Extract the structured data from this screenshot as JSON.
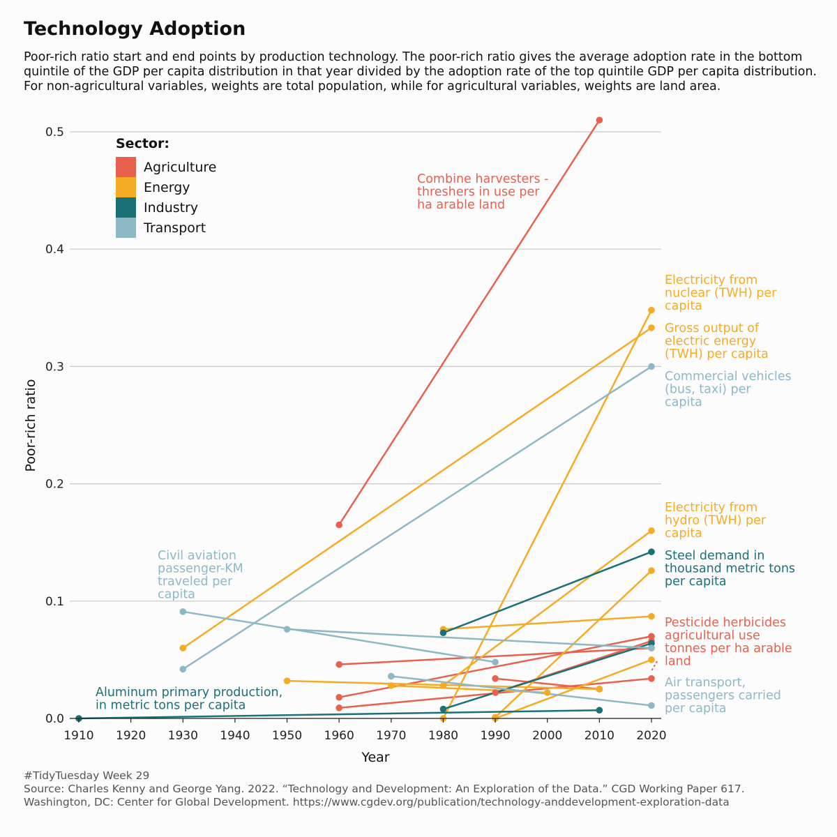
{
  "title": "Technology Adoption",
  "subtitle": "Poor-rich ratio start and end points by production technology. The poor-rich ratio gives the average adoption rate in the bottom quintile of the GDP per capita distribution in that year divided by the adoption rate of the top quintile GDP per capita distribution. For non-agricultural variables, weights are total population, while for agricultural variables, weights are land area.",
  "caption": {
    "line1": "#TidyTuesday Week 29",
    "line2": "Source: Charles Kenny and George Yang. 2022. “Technology and Development: An Exploration of the Data.” CGD Working Paper 617.",
    "line3": "Washington, DC: Center for Global Development. https://www.cgdev.org/publication/technology-anddevelopment-exploration-data"
  },
  "colors": {
    "Agriculture": "#e8614f",
    "Energy": "#f5ac24",
    "Industry": "#1a7178",
    "Transport": "#8db9c6"
  },
  "chart_data": {
    "type": "line",
    "title": "Technology Adoption",
    "xlabel": "Year",
    "ylabel": "Poor-rich ratio",
    "xlim": [
      1910,
      2020
    ],
    "ylim": [
      0,
      0.5
    ],
    "x_ticks": [
      1910,
      1920,
      1930,
      1940,
      1950,
      1960,
      1970,
      1980,
      1990,
      2000,
      2010,
      2020
    ],
    "y_ticks": [
      0.0,
      0.1,
      0.2,
      0.3,
      0.4,
      0.5
    ],
    "y_tick_labels": [
      "0.0",
      "0.1",
      "0.2",
      "0.3",
      "0.4",
      "0.5"
    ],
    "grid": true,
    "legend": {
      "title": "Sector:",
      "position": "top-left",
      "entries": [
        "Agriculture",
        "Energy",
        "Industry",
        "Transport"
      ]
    },
    "series": [
      {
        "sector": "Agriculture",
        "x": [
          1960,
          2010
        ],
        "y": [
          0.165,
          0.51
        ]
      },
      {
        "sector": "Agriculture",
        "x": [
          1960,
          2020
        ],
        "y": [
          0.046,
          0.06
        ]
      },
      {
        "sector": "Agriculture",
        "x": [
          1960,
          2020
        ],
        "y": [
          0.018,
          0.07
        ]
      },
      {
        "sector": "Agriculture",
        "x": [
          1960,
          2020
        ],
        "y": [
          0.009,
          0.034
        ]
      },
      {
        "sector": "Agriculture",
        "x": [
          1990,
          2020
        ],
        "y": [
          0.022,
          0.066
        ]
      },
      {
        "sector": "Agriculture",
        "x": [
          1990,
          2010
        ],
        "y": [
          0.034,
          0.025
        ]
      },
      {
        "sector": "Energy",
        "x": [
          1930,
          2020
        ],
        "y": [
          0.06,
          0.333
        ]
      },
      {
        "sector": "Energy",
        "x": [
          1980,
          2020
        ],
        "y": [
          0.0,
          0.348
        ]
      },
      {
        "sector": "Energy",
        "x": [
          1950,
          2010
        ],
        "y": [
          0.032,
          0.025
        ]
      },
      {
        "sector": "Energy",
        "x": [
          1970,
          2000
        ],
        "y": [
          0.028,
          0.022
        ]
      },
      {
        "sector": "Energy",
        "x": [
          1980,
          2020
        ],
        "y": [
          0.076,
          0.087
        ]
      },
      {
        "sector": "Energy",
        "x": [
          1980,
          2020
        ],
        "y": [
          0.028,
          0.16
        ]
      },
      {
        "sector": "Energy",
        "x": [
          1990,
          2020
        ],
        "y": [
          0.001,
          0.126
        ]
      },
      {
        "sector": "Energy",
        "x": [
          1990,
          2020
        ],
        "y": [
          0.0,
          0.05
        ]
      },
      {
        "sector": "Industry",
        "x": [
          1980,
          2020
        ],
        "y": [
          0.073,
          0.142
        ]
      },
      {
        "sector": "Industry",
        "x": [
          1980,
          2020
        ],
        "y": [
          0.008,
          0.064
        ]
      },
      {
        "sector": "Industry",
        "x": [
          1910,
          2010
        ],
        "y": [
          0.0,
          0.007
        ]
      },
      {
        "sector": "Transport",
        "x": [
          1930,
          2020
        ],
        "y": [
          0.042,
          0.3
        ]
      },
      {
        "sector": "Transport",
        "x": [
          1930,
          1990
        ],
        "y": [
          0.091,
          0.048
        ]
      },
      {
        "sector": "Transport",
        "x": [
          1950,
          2020
        ],
        "y": [
          0.076,
          0.06
        ]
      },
      {
        "sector": "Transport",
        "x": [
          1970,
          2020
        ],
        "y": [
          0.036,
          0.011
        ]
      }
    ],
    "annotations": [
      {
        "sector": "Agriculture",
        "lines": [
          "Combine harvesters -",
          "threshers in use per",
          "ha arable land"
        ]
      },
      {
        "sector": "Energy",
        "lines": [
          "Electricity from",
          "nuclear (TWH) per",
          "capita"
        ]
      },
      {
        "sector": "Energy",
        "lines": [
          "Gross output of",
          "electric energy",
          "(TWH) per capita"
        ]
      },
      {
        "sector": "Transport",
        "lines": [
          "Commercial vehicles",
          "(bus, taxi) per",
          "capita"
        ]
      },
      {
        "sector": "Energy",
        "lines": [
          "Electricity from",
          "hydro (TWH) per",
          "capita"
        ]
      },
      {
        "sector": "Industry",
        "lines": [
          "Steel demand in",
          "thousand metric tons",
          "per capita"
        ]
      },
      {
        "sector": "Agriculture",
        "lines": [
          "Pesticide herbicides",
          "agricultural use",
          "tonnes per ha arable",
          "land"
        ]
      },
      {
        "sector": "Transport",
        "lines": [
          "Air transport,",
          "passengers carried",
          "per capita"
        ]
      },
      {
        "sector": "Transport",
        "lines": [
          "Civil aviation",
          "passenger-KM",
          "traveled per",
          "capita"
        ]
      },
      {
        "sector": "Industry",
        "lines": [
          "Aluminum primary production,",
          "in metric tons per capita"
        ]
      }
    ]
  }
}
